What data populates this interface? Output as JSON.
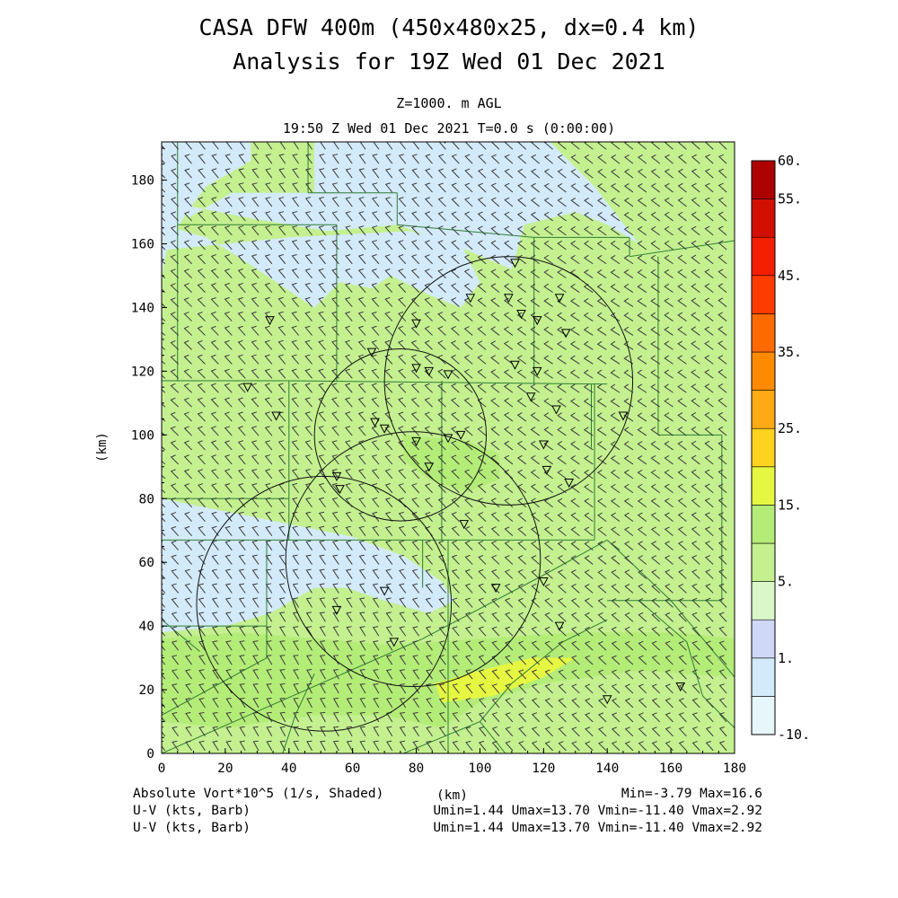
{
  "header": {
    "title_line1": "CASA DFW 400m (450x480x25, dx=0.4 km)",
    "title_line2": "Analysis for 19Z Wed 01 Dec 2021",
    "level": "Z=1000. m AGL",
    "valid_time": "19:50 Z Wed 01 Dec 2021    T=0.0 s (0:00:00)"
  },
  "footer": {
    "field1": "Absolute Vort*10^5 (1/s, Shaded)",
    "field2": "U-V (kts, Barb)",
    "field3": "U-V (kts, Barb)",
    "xunit": "(km)",
    "minmax": "Min=-3.79 Max=16.6",
    "uv1": "Umin=1.44 Umax=13.70 Vmin=-11.40 Vmax=2.92",
    "uv2": "Umin=1.44 Umax=13.70 Vmin=-11.40 Vmax=2.92"
  },
  "chart_data": {
    "type": "heatmap",
    "xlabel": "",
    "ylabel": "(km)",
    "xlim": [
      0,
      180
    ],
    "ylim": [
      0,
      192
    ],
    "xticks": [
      0,
      20,
      40,
      60,
      80,
      100,
      120,
      140,
      160,
      180
    ],
    "yticks": [
      0,
      20,
      40,
      60,
      80,
      100,
      120,
      140,
      160,
      180
    ],
    "colorbar": {
      "boundaries": [
        -10,
        -5,
        1,
        3,
        5,
        10,
        15,
        20,
        25,
        30,
        35,
        40,
        45,
        50,
        55,
        60
      ],
      "colors": [
        "#e6f6fb",
        "#d3eafa",
        "#cfd8f6",
        "#d9f7c8",
        "#c4f090",
        "#b4ec78",
        "#e6f742",
        "#ffd21e",
        "#ffaa14",
        "#ff8a00",
        "#ff6a00",
        "#ff3c00",
        "#f41e00",
        "#d21000",
        "#ad0000"
      ],
      "labels": [
        {
          "text": "60.",
          "value": 60
        },
        {
          "text": "55.",
          "value": 55
        },
        {
          "text": "45.",
          "value": 45
        },
        {
          "text": "35.",
          "value": 35
        },
        {
          "text": "25.",
          "value": 25
        },
        {
          "text": "15.",
          "value": 15
        },
        {
          "text": "5.",
          "value": 5
        },
        {
          "text": "1.",
          "value": 1
        },
        {
          "text": "-10.",
          "value": -10
        }
      ]
    },
    "shading_regions": [
      {
        "value": -2,
        "polygon": [
          [
            0,
            192
          ],
          [
            28,
            192
          ],
          [
            28,
            186
          ],
          [
            14,
            178
          ],
          [
            8,
            170
          ],
          [
            2,
            160
          ],
          [
            0,
            150
          ]
        ]
      },
      {
        "value": 0,
        "polygon": [
          [
            8,
            172
          ],
          [
            28,
            168
          ],
          [
            52,
            164
          ],
          [
            74,
            166
          ],
          [
            96,
            158
          ],
          [
            110,
            152
          ],
          [
            114,
            166
          ],
          [
            130,
            170
          ],
          [
            140,
            166
          ],
          [
            150,
            160
          ],
          [
            136,
            178
          ],
          [
            122,
            192
          ],
          [
            48,
            192
          ],
          [
            48,
            176
          ],
          [
            22,
            176
          ],
          [
            8,
            168
          ]
        ]
      },
      {
        "value": 0,
        "polygon": [
          [
            0,
            166
          ],
          [
            14,
            162
          ],
          [
            24,
            156
          ],
          [
            36,
            148
          ],
          [
            48,
            140
          ],
          [
            56,
            148
          ],
          [
            66,
            146
          ],
          [
            72,
            150
          ],
          [
            84,
            144
          ],
          [
            94,
            140
          ],
          [
            100,
            148
          ],
          [
            94,
            160
          ],
          [
            78,
            164
          ],
          [
            40,
            162
          ],
          [
            20,
            160
          ],
          [
            0,
            158
          ]
        ]
      },
      {
        "value": 0,
        "polygon": [
          [
            0,
            80
          ],
          [
            20,
            76
          ],
          [
            40,
            72
          ],
          [
            60,
            68
          ],
          [
            76,
            62
          ],
          [
            88,
            54
          ],
          [
            92,
            48
          ],
          [
            84,
            44
          ],
          [
            70,
            48
          ],
          [
            58,
            52
          ],
          [
            48,
            52
          ],
          [
            34,
            44
          ],
          [
            20,
            40
          ],
          [
            0,
            38
          ]
        ]
      },
      {
        "value": 12,
        "polygon": [
          [
            76,
            100
          ],
          [
            96,
            98
          ],
          [
            106,
            94
          ],
          [
            106,
            86
          ],
          [
            96,
            82
          ],
          [
            84,
            86
          ],
          [
            76,
            92
          ]
        ]
      },
      {
        "value": 12,
        "polygon": [
          [
            0,
            36
          ],
          [
            24,
            38
          ],
          [
            50,
            36
          ],
          [
            72,
            34
          ],
          [
            100,
            36
          ],
          [
            130,
            38
          ],
          [
            162,
            38
          ],
          [
            180,
            36
          ],
          [
            180,
            24
          ],
          [
            150,
            26
          ],
          [
            120,
            22
          ],
          [
            100,
            16
          ],
          [
            88,
            8
          ],
          [
            70,
            12
          ],
          [
            48,
            12
          ],
          [
            20,
            8
          ],
          [
            0,
            10
          ]
        ]
      },
      {
        "value": 16,
        "polygon": [
          [
            86,
            22
          ],
          [
            100,
            26
          ],
          [
            116,
            30
          ],
          [
            130,
            30
          ],
          [
            120,
            24
          ],
          [
            104,
            18
          ],
          [
            88,
            16
          ]
        ]
      }
    ],
    "radar_sites": [
      {
        "x": 109,
        "y": 117,
        "r": 39
      },
      {
        "x": 75,
        "y": 100,
        "r": 27
      },
      {
        "x": 51,
        "y": 47,
        "r": 40
      },
      {
        "x": 79,
        "y": 61,
        "r": 40
      }
    ],
    "stations": [
      [
        34,
        136
      ],
      [
        27,
        115
      ],
      [
        36,
        106
      ],
      [
        66,
        126
      ],
      [
        67,
        104
      ],
      [
        70,
        102
      ],
      [
        80,
        135
      ],
      [
        80,
        121
      ],
      [
        84,
        120
      ],
      [
        90,
        119
      ],
      [
        111,
        154
      ],
      [
        97,
        143
      ],
      [
        109,
        143
      ],
      [
        113,
        138
      ],
      [
        118,
        136
      ],
      [
        125,
        143
      ],
      [
        127,
        132
      ],
      [
        111,
        122
      ],
      [
        118,
        120
      ],
      [
        116,
        112
      ],
      [
        124,
        108
      ],
      [
        120,
        97
      ],
      [
        121,
        89
      ],
      [
        128,
        85
      ],
      [
        145,
        106
      ],
      [
        80,
        98
      ],
      [
        90,
        99
      ],
      [
        94,
        100
      ],
      [
        84,
        90
      ],
      [
        55,
        87
      ],
      [
        56,
        83
      ],
      [
        95,
        72
      ],
      [
        70,
        51
      ],
      [
        105,
        52
      ],
      [
        120,
        54
      ],
      [
        55,
        45
      ],
      [
        73,
        35
      ],
      [
        125,
        40
      ],
      [
        140,
        17
      ],
      [
        163,
        21
      ],
      [
        89,
        193
      ]
    ],
    "wind": {
      "u_range": [
        1.44,
        13.7
      ],
      "v_range": [
        -11.4,
        2.92
      ]
    }
  }
}
